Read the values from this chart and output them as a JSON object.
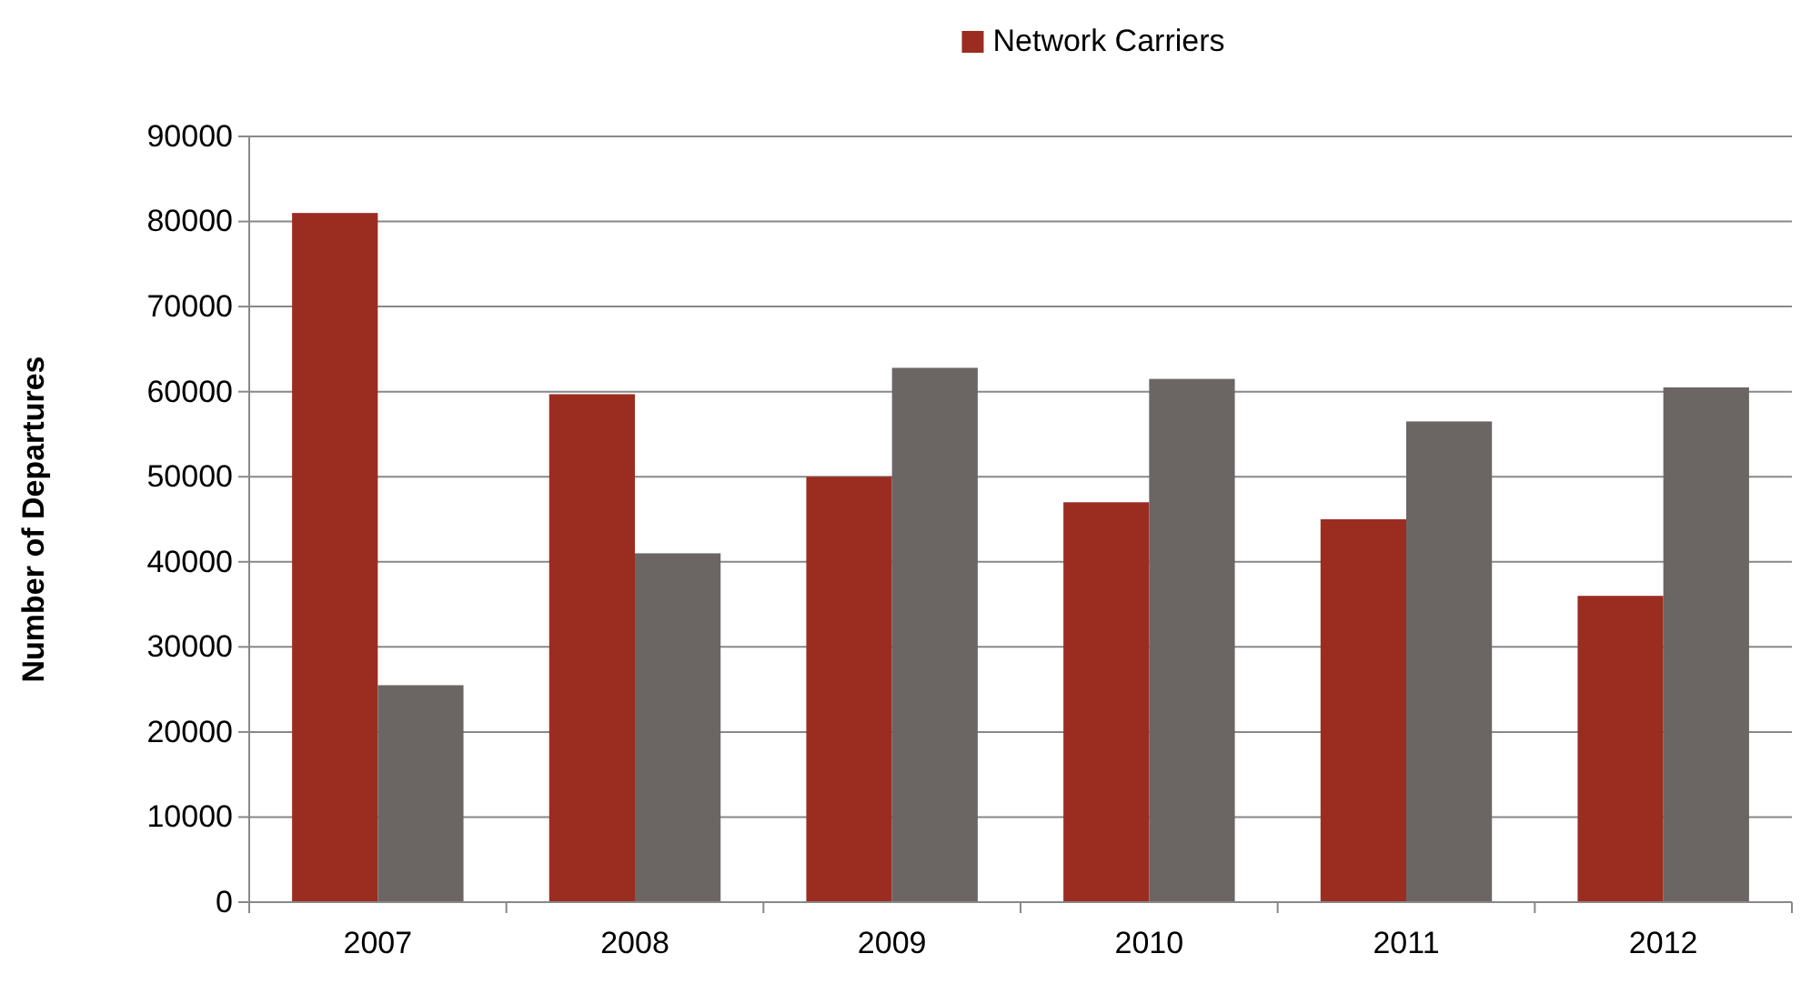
{
  "chart_data": {
    "type": "bar",
    "ylabel": "Number of Departures",
    "categories": [
      "2007",
      "2008",
      "2009",
      "2010",
      "2011",
      "2012"
    ],
    "series": [
      {
        "name": "Network Carriers",
        "color": "#9b2d20",
        "values": [
          81000,
          59700,
          50000,
          47000,
          45000,
          36000
        ]
      },
      {
        "color": "#6b6664",
        "values": [
          25500,
          41000,
          62800,
          61500,
          56500,
          60500
        ]
      }
    ],
    "ylim": [
      0,
      90000
    ],
    "yticks": [
      0,
      10000,
      20000,
      30000,
      40000,
      50000,
      60000,
      70000,
      80000,
      90000
    ],
    "grid": "y",
    "legend": "top"
  }
}
